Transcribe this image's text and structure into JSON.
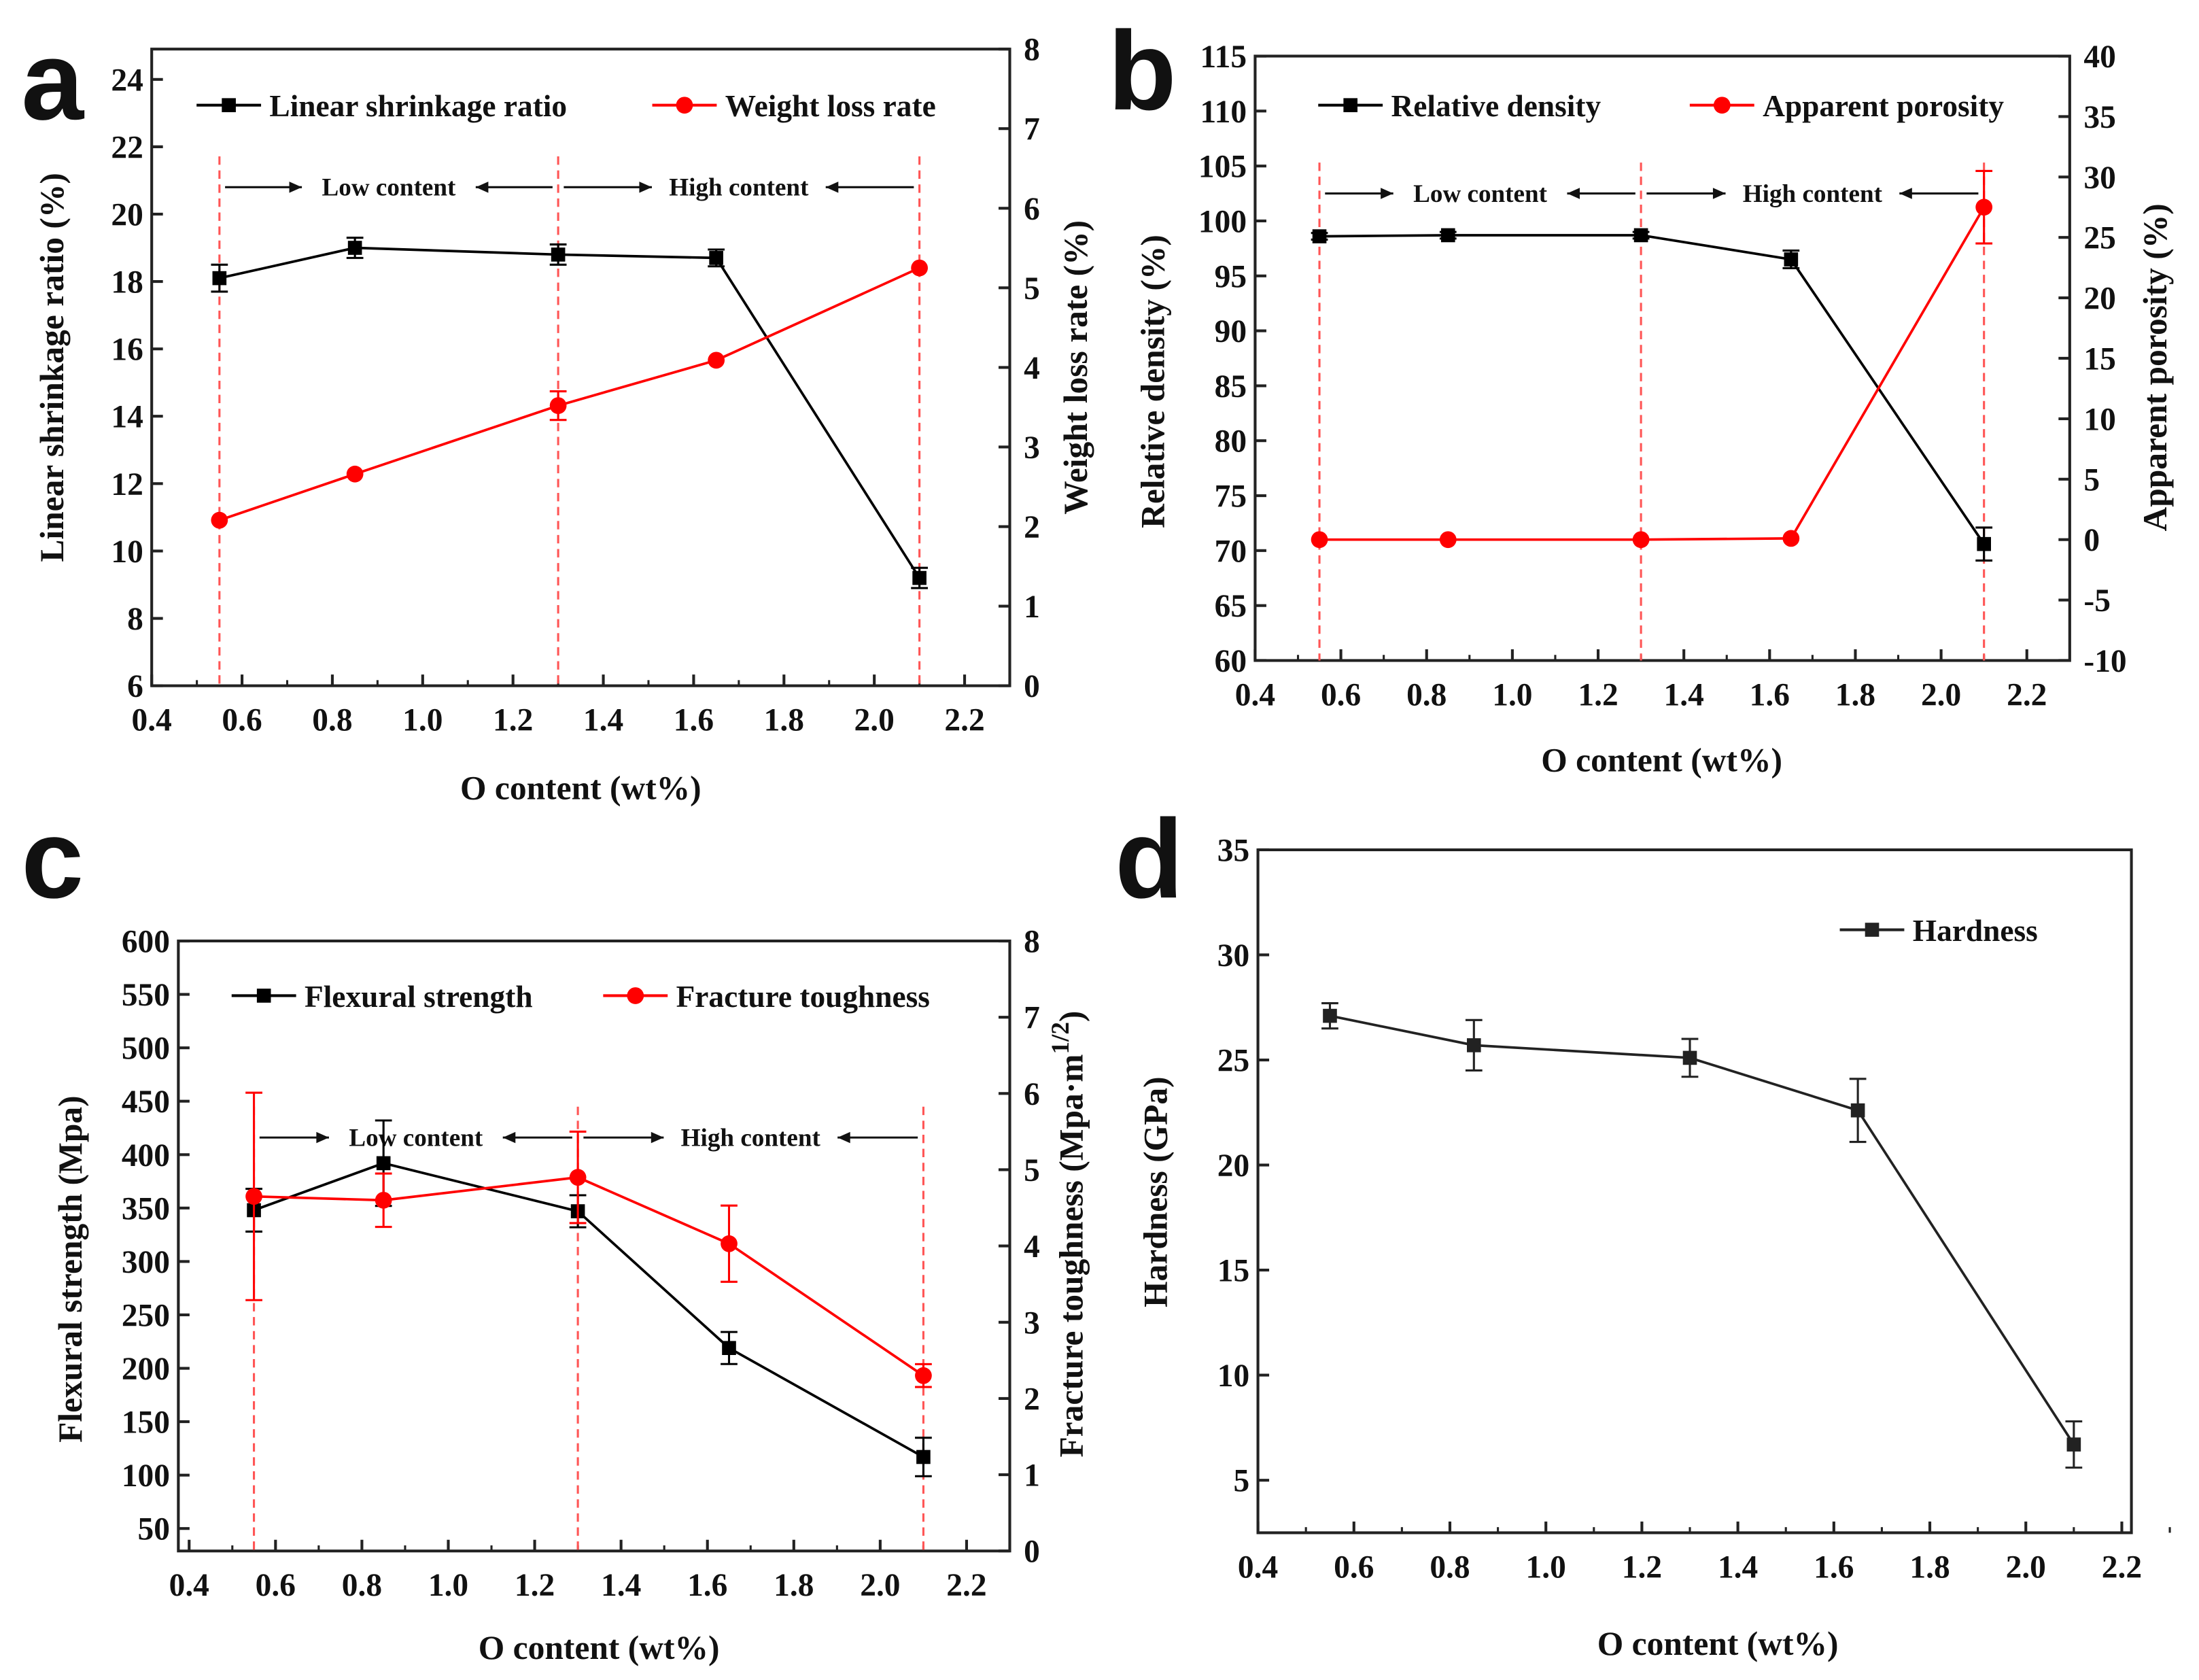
{
  "chart_data": [
    {
      "panel_label": "a",
      "type": "line",
      "xlabel": "O content (wt%)",
      "ylabel": "Linear shrinkage ratio (%)",
      "y2label": "Weight loss rate (%)",
      "xlim": [
        0.4,
        2.3
      ],
      "ylim": [
        6,
        24.9
      ],
      "y2lim": [
        0,
        8
      ],
      "xticks": [
        "0.4",
        "0.6",
        "0.8",
        "1.0",
        "1.2",
        "1.4",
        "1.6",
        "1.8",
        "2.0",
        "2.2"
      ],
      "yticks": [
        "6",
        "8",
        "10",
        "12",
        "14",
        "16",
        "18",
        "20",
        "22",
        "24"
      ],
      "y2ticks": [
        "0",
        "1",
        "2",
        "3",
        "4",
        "5",
        "6",
        "7",
        "8"
      ],
      "x": [
        0.55,
        0.85,
        1.3,
        1.65,
        2.1
      ],
      "series": [
        {
          "name": "Linear shrinkage ratio",
          "axis": "left",
          "color": "#000000",
          "marker": "square",
          "values": [
            18.1,
            19.0,
            18.8,
            18.7,
            9.2
          ],
          "errors": [
            0.4,
            0.3,
            0.3,
            0.25,
            0.3
          ]
        },
        {
          "name": "Weight loss rate",
          "axis": "right",
          "color": "#ff0000",
          "marker": "circle",
          "values": [
            2.08,
            2.66,
            3.52,
            4.09,
            5.25
          ],
          "errors": [
            0,
            0,
            0.18,
            0,
            0
          ]
        }
      ],
      "dashed_lines": [
        0.55,
        1.3,
        2.1
      ],
      "annotations": {
        "low": "Low content",
        "high": "High content"
      },
      "annotation_level": 20.8,
      "legend_position": "top"
    },
    {
      "panel_label": "b",
      "type": "line",
      "xlabel": "O content (wt%)",
      "ylabel": "Relative  density (%)",
      "y2label": "Apparent porosity (%)",
      "xlim": [
        0.4,
        2.3
      ],
      "ylim": [
        60,
        115
      ],
      "y2lim": [
        -10,
        40
      ],
      "xticks": [
        "0.4",
        "0.6",
        "0.8",
        "1.0",
        "1.2",
        "1.4",
        "1.6",
        "1.8",
        "2.0",
        "2.2"
      ],
      "yticks": [
        "60",
        "65",
        "70",
        "75",
        "80",
        "85",
        "90",
        "95",
        "100",
        "105",
        "110",
        "115"
      ],
      "y2ticks": [
        "-10",
        "-5",
        "0",
        "5",
        "10",
        "15",
        "20",
        "25",
        "30",
        "35",
        "40"
      ],
      "x": [
        0.55,
        0.85,
        1.3,
        1.65,
        2.1
      ],
      "series": [
        {
          "name": "Relative  density",
          "axis": "left",
          "color": "#000000",
          "marker": "square",
          "values": [
            98.6,
            98.7,
            98.7,
            96.5,
            70.6
          ],
          "errors": [
            0.3,
            0.3,
            0.3,
            0.8,
            1.5
          ]
        },
        {
          "name": "Apparent porosity",
          "axis": "right",
          "color": "#ff0000",
          "marker": "circle",
          "values": [
            0,
            0,
            0,
            0.1,
            27.5
          ],
          "errors": [
            0,
            0,
            0,
            0,
            3
          ]
        }
      ],
      "dashed_lines": [
        0.55,
        1.3,
        2.1
      ],
      "annotations": {
        "low": "Low content",
        "high": "High content"
      },
      "annotation_level": 102.5,
      "legend_position": "top"
    },
    {
      "panel_label": "c",
      "type": "line",
      "xlabel": "O content (wt%)",
      "ylabel": "Flexural strength (Mpa)",
      "y2label": "Fracture toughness (Mpa·m",
      "y2label_sup": "1/2",
      "y2label_end": ")",
      "xlim": [
        0.375,
        2.3
      ],
      "ylim": [
        29,
        600
      ],
      "y2lim": [
        0,
        8
      ],
      "xticks": [
        "0.4",
        "0.6",
        "0.8",
        "1.0",
        "1.2",
        "1.4",
        "1.6",
        "1.8",
        "2.0",
        "2.2"
      ],
      "yticks": [
        "50",
        "100",
        "150",
        "200",
        "250",
        "300",
        "350",
        "400",
        "450",
        "500",
        "550",
        "600"
      ],
      "y2ticks": [
        "0",
        "1",
        "2",
        "3",
        "4",
        "5",
        "6",
        "7",
        "8"
      ],
      "x": [
        0.55,
        0.85,
        1.3,
        1.65,
        2.1
      ],
      "series": [
        {
          "name": "Flexural strength",
          "axis": "left",
          "color": "#000000",
          "marker": "square",
          "values": [
            348,
            392,
            347,
            219,
            117
          ],
          "errors": [
            20,
            40,
            15,
            15,
            18
          ]
        },
        {
          "name": "Fracture toughness",
          "axis": "right",
          "color": "#ff0000",
          "marker": "circle",
          "values": [
            4.65,
            4.6,
            4.9,
            4.03,
            2.3
          ],
          "errors": [
            1.36,
            0.35,
            0.6,
            0.5,
            0.15
          ]
        }
      ],
      "dashed_lines": [
        0.55,
        1.3,
        2.1
      ],
      "annotations": {
        "low": "Low content",
        "high": "High content"
      },
      "annotation_level": 416,
      "legend_position": "top"
    },
    {
      "panel_label": "d",
      "type": "line",
      "xlabel": "O content (wt%)",
      "ylabel": "Hardness (GPa)",
      "xlim": [
        0.4,
        2.22
      ],
      "ylim": [
        2.5,
        35
      ],
      "xticks": [
        "0.4",
        "0.6",
        "0.8",
        "1.0",
        "1.2",
        "1.4",
        "1.6",
        "1.8",
        "2.0",
        "2.2"
      ],
      "yticks": [
        "5",
        "10",
        "15",
        "20",
        "25",
        "30",
        "35"
      ],
      "x": [
        0.55,
        0.85,
        1.3,
        1.65,
        2.1
      ],
      "series": [
        {
          "name": "Hardness",
          "axis": "left",
          "color": "#222222",
          "marker": "square",
          "values": [
            27.1,
            25.7,
            25.1,
            22.6,
            6.7
          ],
          "errors": [
            0.6,
            1.2,
            0.9,
            1.5,
            1.1
          ]
        }
      ],
      "legend_position": "top-right"
    }
  ]
}
